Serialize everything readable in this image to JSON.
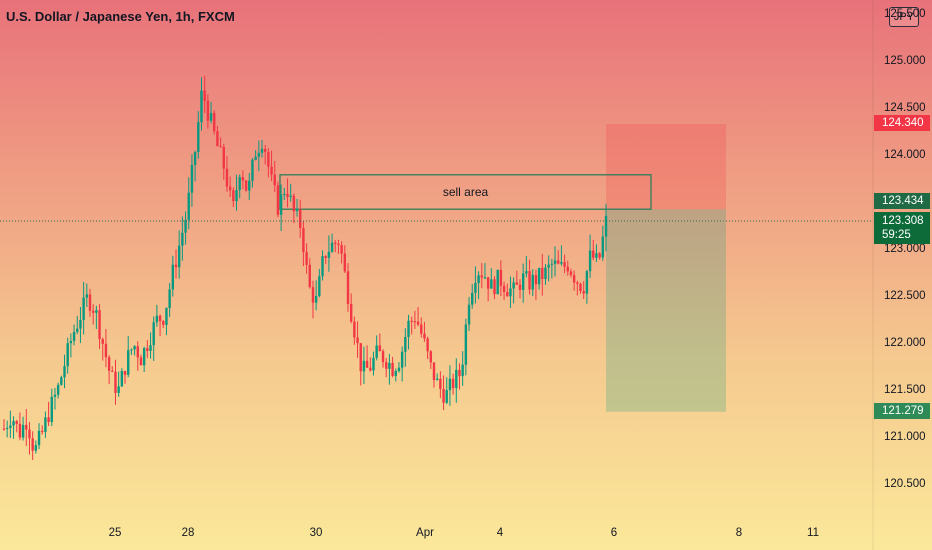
{
  "header": {
    "title": "U.S. Dollar / Japanese Yen, 1h, FXCM",
    "currency_button": "JPY"
  },
  "annotation": {
    "box_label": "sell area"
  },
  "price_tags": {
    "target": {
      "value": "124.340",
      "color": "#f23645"
    },
    "entry": {
      "value": "123.434",
      "color": "#1e6b45"
    },
    "current": {
      "value": "123.308",
      "timer": "59:25",
      "color": "#0d6b3a"
    },
    "stop": {
      "value": "121.279",
      "color": "#2e8b57"
    }
  },
  "colors": {
    "up": "#089981",
    "down": "#f23645",
    "box": "#2e7d5b"
  },
  "chart_data": {
    "type": "candlestick",
    "title": "U.S. Dollar / Japanese Yen, 1h, FXCM",
    "ylim": [
      120.3,
      125.55
    ],
    "yticks": [
      "120.500",
      "121.000",
      "121.500",
      "122.000",
      "122.500",
      "123.000",
      "123.500",
      "124.000",
      "124.500",
      "125.000",
      "125.500"
    ],
    "xticks": [
      "25",
      "28",
      "30",
      "Apr",
      "4",
      "6",
      "8",
      "11"
    ],
    "path": [
      121.1,
      121.25,
      121.05,
      121.2,
      120.85,
      121.05,
      121.3,
      121.5,
      121.8,
      122.1,
      122.3,
      122.5,
      122.35,
      122.0,
      121.65,
      121.5,
      121.8,
      122.0,
      121.85,
      122.05,
      122.25,
      122.3,
      122.7,
      123.05,
      123.4,
      124.0,
      124.7,
      124.4,
      124.1,
      123.85,
      123.4,
      123.9,
      123.6,
      124.05,
      124.2,
      123.75,
      123.45,
      123.7,
      123.4,
      123.25,
      122.6,
      122.45,
      122.95,
      123.05,
      123.1,
      122.6,
      122.15,
      121.7,
      121.75,
      121.9,
      121.85,
      121.75,
      121.85,
      122.2,
      122.3,
      122.05,
      121.75,
      121.55,
      121.45,
      121.6,
      121.7,
      122.5,
      122.8,
      122.75,
      122.6,
      122.7,
      122.6,
      122.55,
      122.7,
      122.65,
      122.7,
      122.75,
      122.85,
      122.8,
      122.85,
      122.7,
      122.6,
      122.95,
      122.85,
      123.3
    ],
    "series": [
      {
        "name": "sell area",
        "from_price": 123.434,
        "to_price": 123.8
      },
      {
        "name": "position",
        "entry": 123.434,
        "target": 124.34,
        "stop": 121.279
      }
    ]
  }
}
